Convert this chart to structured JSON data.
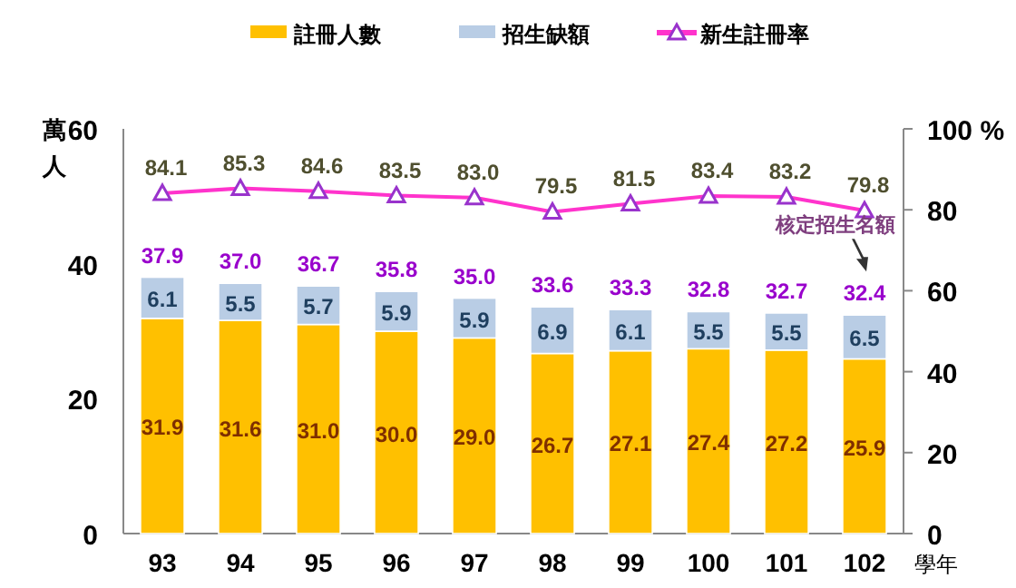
{
  "chart_data": {
    "type": "bar",
    "stacked": true,
    "xlabel": "學年",
    "ylabel": "萬人",
    "categories": [
      "93",
      "94",
      "95",
      "96",
      "97",
      "98",
      "99",
      "100",
      "101",
      "102"
    ],
    "series": [
      {
        "name": "註冊人數",
        "type": "bar",
        "color": "#ffc000",
        "values": [
          31.9,
          31.6,
          31.0,
          30.0,
          29.0,
          26.7,
          27.1,
          27.4,
          27.2,
          25.9
        ],
        "value_labels": [
          "31.9",
          "31.6",
          "31.0",
          "30.0",
          "29.0",
          "26.7",
          "27.1",
          "27.4",
          "27.2",
          "25.9"
        ]
      },
      {
        "name": "招生缺額",
        "type": "bar",
        "color": "#b9cde5",
        "values": [
          6.1,
          5.5,
          5.7,
          5.9,
          5.9,
          6.9,
          6.1,
          5.5,
          5.5,
          6.5
        ],
        "value_labels": [
          "6.1",
          "5.5",
          "5.7",
          "5.9",
          "5.9",
          "6.9",
          "6.1",
          "5.5",
          "5.5",
          "6.5"
        ]
      },
      {
        "name": "新生註冊率",
        "type": "line",
        "axis": "y2",
        "marker": "triangle",
        "color": "#ff33cc",
        "values": [
          84.1,
          85.3,
          84.6,
          83.5,
          83.0,
          79.5,
          81.5,
          83.4,
          83.2,
          79.8
        ],
        "value_labels": [
          "84.1",
          "85.3",
          "84.6",
          "83.5",
          "83.0",
          "79.5",
          "81.5",
          "83.4",
          "83.2",
          "79.8"
        ]
      }
    ],
    "totals": [
      "37.9",
      "37.0",
      "36.7",
      "35.8",
      "35.0",
      "33.6",
      "33.3",
      "32.8",
      "32.7",
      "32.4"
    ],
    "ylim": [
      0,
      60
    ],
    "yticks": [
      0,
      20,
      40,
      60
    ],
    "y2lim": [
      0,
      100
    ],
    "y2ticks": [
      0,
      20,
      40,
      60,
      80,
      {
        "value": 100,
        "label": "100 %"
      }
    ],
    "annotations": [
      "核定招生名額"
    ],
    "legend": "top",
    "grid": false
  }
}
